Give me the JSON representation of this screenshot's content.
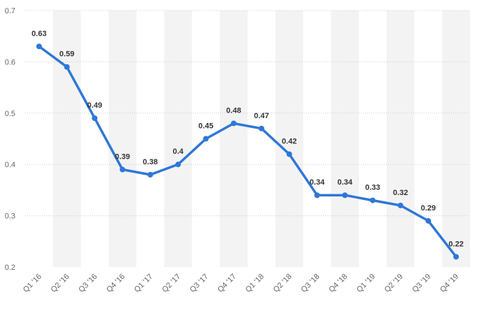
{
  "chart_data": {
    "type": "line",
    "title": "",
    "xlabel": "",
    "ylabel": "",
    "categories": [
      "Q1 '16",
      "Q2 '16",
      "Q3 '16",
      "Q4 '16",
      "Q1 '17",
      "Q2 '17",
      "Q3 '17",
      "Q4 '17",
      "Q1 '18",
      "Q2 '18",
      "Q3 '18",
      "Q4 '18",
      "Q1 '19",
      "Q2 '19",
      "Q3 '19",
      "Q4 '19"
    ],
    "series": [
      {
        "values": [
          0.63,
          0.59,
          0.49,
          0.39,
          0.38,
          0.4,
          0.45,
          0.48,
          0.47,
          0.42,
          0.34,
          0.34,
          0.33,
          0.32,
          0.29,
          0.22
        ]
      }
    ],
    "data_labels": [
      "0.63",
      "0.59",
      "0.49",
      "0.39",
      "0.38",
      "0.4",
      "0.45",
      "0.48",
      "0.47",
      "0.42",
      "0.34",
      "0.34",
      "0.33",
      "0.32",
      "0.29",
      "0.22"
    ],
    "y_ticks": [
      "0.2",
      "0.3",
      "0.4",
      "0.5",
      "0.6",
      "0.7"
    ],
    "ylim": [
      0.2,
      0.7
    ],
    "grid": true,
    "legend": "none",
    "colors": {
      "line": "#2f77d8",
      "band": "#f3f3f3",
      "grid": "#cccccc"
    }
  }
}
